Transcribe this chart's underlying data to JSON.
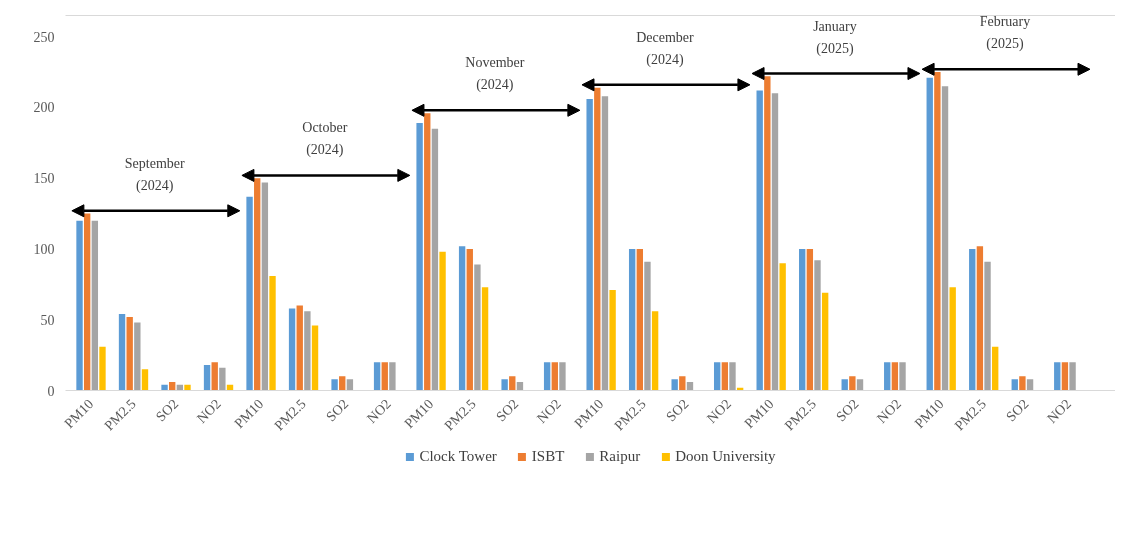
{
  "chart_data": {
    "type": "bar",
    "categories": [
      "PM10",
      "PM2.5",
      "SO2",
      "NO2",
      "PM10",
      "PM2.5",
      "SO2",
      "NO2",
      "PM10",
      "PM2.5",
      "SO2",
      "NO2",
      "PM10",
      "PM2.5",
      "SO2",
      "NO2",
      "PM10",
      "PM2.5",
      "SO2",
      "NO2",
      "PM10",
      "PM2.5",
      "SO2",
      "NO2"
    ],
    "series": [
      {
        "name": "Clock Tower",
        "color": "#5b9bd5",
        "values": [
          120,
          54,
          4,
          18,
          137,
          58,
          8,
          20,
          189,
          102,
          8,
          20,
          206,
          100,
          8,
          20,
          212,
          100,
          8,
          20,
          221,
          100,
          8,
          20
        ]
      },
      {
        "name": "ISBT",
        "color": "#ed7d31",
        "values": [
          125,
          52,
          6,
          20,
          150,
          60,
          10,
          20,
          196,
          100,
          10,
          20,
          214,
          100,
          10,
          20,
          222,
          100,
          10,
          20,
          225,
          102,
          10,
          20
        ]
      },
      {
        "name": "Raipur",
        "color": "#a5a5a5",
        "values": [
          120,
          48,
          4,
          16,
          147,
          56,
          8,
          20,
          185,
          89,
          6,
          20,
          208,
          91,
          6,
          20,
          210,
          92,
          8,
          20,
          215,
          91,
          8,
          20
        ]
      },
      {
        "name": "Doon University",
        "color": "#ffc000",
        "values": [
          31,
          15,
          4,
          4,
          81,
          46,
          null,
          null,
          98,
          73,
          null,
          null,
          71,
          56,
          null,
          2,
          90,
          69,
          null,
          null,
          73,
          31,
          null,
          null
        ]
      }
    ],
    "annotations": [
      "September\n(2024)",
      "October\n(2024)",
      "November\n(2024)",
      "December\n(2024)",
      "January\n(2025)",
      "February\n(2025)"
    ],
    "ylim": [
      0,
      265
    ],
    "yticks": [
      0,
      50,
      100,
      150,
      200,
      250
    ],
    "grid": false,
    "legend": "bottom"
  }
}
